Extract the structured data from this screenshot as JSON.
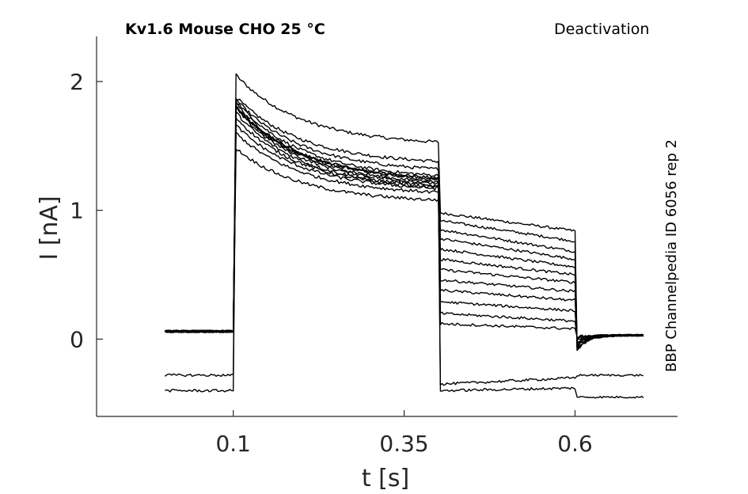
{
  "header": {
    "title": "Kv1.6  Mouse  CHO  25 °C",
    "protocol": "Deactivation"
  },
  "side_label": "BBP Channelpedia ID 6056 rep 2",
  "chart_data": {
    "type": "line",
    "title": "Kv1.6  Mouse  CHO  25 °C",
    "xlabel": "t [s]",
    "ylabel": "I [nA]",
    "xlim": [
      -0.1,
      0.75
    ],
    "ylim": [
      -0.6,
      2.35
    ],
    "xticks": [
      0.1,
      0.35,
      0.6
    ],
    "xtick_labels": [
      "0.1",
      "0.35",
      "0.6"
    ],
    "yticks": [
      0,
      1,
      2
    ],
    "ytick_labels": [
      "0",
      "1",
      "2"
    ],
    "grid": false,
    "legend": "none",
    "line_color": "#000000",
    "segments_t": [
      0.0,
      0.1,
      0.4,
      0.6,
      0.7
    ],
    "series": [
      {
        "levels": {
          "base": 0.06,
          "peak": 2.05,
          "end1": 1.53,
          "start2": 0.98,
          "end2": 0.84,
          "tail": 0.03
        }
      },
      {
        "levels": {
          "base": 0.06,
          "peak": 1.88,
          "end1": 1.38,
          "start2": 0.92,
          "end2": 0.76,
          "tail": 0.03
        }
      },
      {
        "levels": {
          "base": 0.06,
          "peak": 1.86,
          "end1": 1.32,
          "start2": 0.85,
          "end2": 0.68,
          "tail": 0.03
        }
      },
      {
        "levels": {
          "base": 0.06,
          "peak": 1.85,
          "end1": 1.27,
          "start2": 0.78,
          "end2": 0.62,
          "tail": 0.03
        }
      },
      {
        "levels": {
          "base": 0.06,
          "peak": 1.83,
          "end1": 1.24,
          "start2": 0.7,
          "end2": 0.56,
          "tail": 0.03
        }
      },
      {
        "levels": {
          "base": 0.06,
          "peak": 1.81,
          "end1": 1.22,
          "start2": 0.62,
          "end2": 0.5,
          "tail": 0.03
        }
      },
      {
        "levels": {
          "base": 0.06,
          "peak": 1.79,
          "end1": 1.21,
          "start2": 0.54,
          "end2": 0.44,
          "tail": 0.03
        }
      },
      {
        "levels": {
          "base": 0.06,
          "peak": 1.76,
          "end1": 1.19,
          "start2": 0.46,
          "end2": 0.37,
          "tail": 0.03
        }
      },
      {
        "levels": {
          "base": 0.06,
          "peak": 1.72,
          "end1": 1.18,
          "start2": 0.38,
          "end2": 0.3,
          "tail": 0.03
        }
      },
      {
        "levels": {
          "base": 0.06,
          "peak": 1.66,
          "end1": 1.17,
          "start2": 0.29,
          "end2": 0.22,
          "tail": 0.03
        }
      },
      {
        "levels": {
          "base": 0.06,
          "peak": 1.6,
          "end1": 1.14,
          "start2": 0.2,
          "end2": 0.14,
          "tail": 0.03
        }
      },
      {
        "levels": {
          "base": 0.06,
          "peak": 1.48,
          "end1": 1.08,
          "start2": 0.12,
          "end2": 0.08,
          "tail": 0.03
        }
      },
      {
        "levels": {
          "base": -0.28,
          "peak": 1.8,
          "end1": 1.25,
          "start2": -0.35,
          "end2": -0.3,
          "tail": -0.28
        }
      },
      {
        "levels": {
          "base": -0.4,
          "peak": 1.8,
          "end1": 1.25,
          "start2": -0.4,
          "end2": -0.38,
          "tail": -0.45
        }
      }
    ]
  }
}
